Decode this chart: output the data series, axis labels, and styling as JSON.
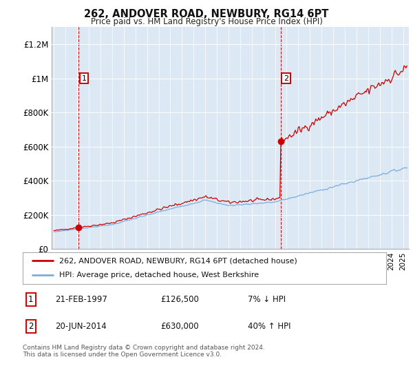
{
  "title": "262, ANDOVER ROAD, NEWBURY, RG14 6PT",
  "subtitle": "Price paid vs. HM Land Registry's House Price Index (HPI)",
  "background_color": "#ffffff",
  "plot_bg_color": "#dce9f5",
  "ylim": [
    0,
    1300000
  ],
  "yticks": [
    0,
    200000,
    400000,
    600000,
    800000,
    1000000,
    1200000
  ],
  "ytick_labels": [
    "£0",
    "£200K",
    "£400K",
    "£600K",
    "£800K",
    "£1M",
    "£1.2M"
  ],
  "sale1_year": 1997.13,
  "sale1_price": 126500,
  "sale2_year": 2014.47,
  "sale2_price": 630000,
  "red_line_color": "#cc0000",
  "blue_line_color": "#7aacdc",
  "legend_label_red": "262, ANDOVER ROAD, NEWBURY, RG14 6PT (detached house)",
  "legend_label_blue": "HPI: Average price, detached house, West Berkshire",
  "table_row1_num": "1",
  "table_row1_date": "21-FEB-1997",
  "table_row1_price": "£126,500",
  "table_row1_hpi": "7% ↓ HPI",
  "table_row2_num": "2",
  "table_row2_date": "20-JUN-2014",
  "table_row2_price": "£630,000",
  "table_row2_hpi": "40% ↑ HPI",
  "footnote": "Contains HM Land Registry data © Crown copyright and database right 2024.\nThis data is licensed under the Open Government Licence v3.0.",
  "xmin": 1994.8,
  "xmax": 2025.5
}
